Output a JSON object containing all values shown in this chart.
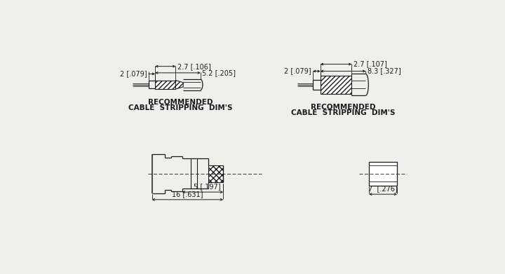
{
  "bg_color": "#f0f0eb",
  "line_color": "#1a1a1a",
  "text_color": "#1a1a1a",
  "font_size": 7.0,
  "top_left_label1": "2 [.079]",
  "top_left_dim1": "2.7 [.106]",
  "top_left_dim2": "5.2 [.205]",
  "top_left_caption1": "RECOMMENDED",
  "top_left_caption2": "CABLE  STRIPPING  DIM'S",
  "top_right_label1": "2 [.079]",
  "top_right_dim1": "2.7 [.107]",
  "top_right_dim2": "8.3 [.327]",
  "top_right_caption1": "RECOMMENDED",
  "top_right_caption2": "CABLE  STRIPPING  DIM'S",
  "bottom_left_dim1": "5 [.197]",
  "bottom_left_dim2": "16 [.631]",
  "bottom_right_dim1": "7  [.276]"
}
